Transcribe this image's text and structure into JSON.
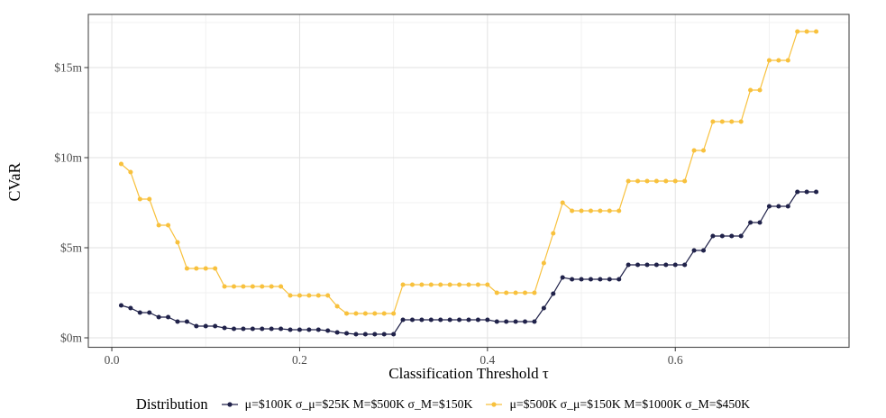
{
  "chart_data": {
    "type": "line",
    "title": "",
    "xlabel": "Classification Threshold τ",
    "ylabel": "CVaR",
    "legend_title": "Distribution",
    "legend_position": "bottom",
    "grid": true,
    "xlim": [
      -0.025,
      0.785
    ],
    "ylim": [
      -0.525,
      17.95
    ],
    "x_ticks": [
      0.0,
      0.2,
      0.4,
      0.6
    ],
    "x_tick_labels": [
      "0.0",
      "0.2",
      "0.4",
      "0.6"
    ],
    "x_minor_ticks": [
      0.1,
      0.3,
      0.5,
      0.7
    ],
    "y_ticks": [
      0,
      5,
      10,
      15
    ],
    "y_tick_labels": [
      "$0m",
      "$5m",
      "$10m",
      "$15m"
    ],
    "y_minor_ticks": [
      2.5,
      7.5,
      12.5,
      17.5
    ],
    "x": [
      0.01,
      0.02,
      0.03,
      0.04,
      0.05,
      0.06,
      0.07,
      0.08,
      0.09,
      0.1,
      0.11,
      0.12,
      0.13,
      0.14,
      0.15,
      0.16,
      0.17,
      0.18,
      0.19,
      0.2,
      0.21,
      0.22,
      0.23,
      0.24,
      0.25,
      0.26,
      0.27,
      0.28,
      0.29,
      0.3,
      0.31,
      0.32,
      0.33,
      0.34,
      0.35,
      0.36,
      0.37,
      0.38,
      0.39,
      0.4,
      0.41,
      0.42,
      0.43,
      0.44,
      0.45,
      0.46,
      0.47,
      0.48,
      0.49,
      0.5,
      0.51,
      0.52,
      0.53,
      0.54,
      0.55,
      0.56,
      0.57,
      0.58,
      0.59,
      0.6,
      0.61,
      0.62,
      0.63,
      0.64,
      0.65,
      0.66,
      0.67,
      0.68,
      0.69,
      0.7,
      0.71,
      0.72,
      0.73,
      0.74,
      0.75
    ],
    "series": [
      {
        "name": "μ=$100K σ_μ=$25K M=$500K σ_M=$150K",
        "color": "#20224a",
        "values": [
          1.8,
          1.65,
          1.4,
          1.4,
          1.15,
          1.15,
          0.9,
          0.9,
          0.65,
          0.65,
          0.65,
          0.55,
          0.5,
          0.5,
          0.5,
          0.5,
          0.5,
          0.5,
          0.45,
          0.45,
          0.45,
          0.45,
          0.4,
          0.3,
          0.25,
          0.2,
          0.2,
          0.2,
          0.2,
          0.2,
          1.0,
          1.0,
          1.0,
          1.0,
          1.0,
          1.0,
          1.0,
          1.0,
          1.0,
          1.0,
          0.9,
          0.9,
          0.9,
          0.9,
          0.9,
          1.65,
          2.45,
          3.35,
          3.25,
          3.25,
          3.25,
          3.25,
          3.25,
          3.25,
          4.05,
          4.05,
          4.05,
          4.05,
          4.05,
          4.05,
          4.05,
          4.85,
          4.85,
          5.65,
          5.65,
          5.65,
          5.65,
          6.4,
          6.4,
          7.3,
          7.3,
          7.3,
          8.1,
          8.1,
          8.1
        ]
      },
      {
        "name": "μ=$500K σ_μ=$150K M=$1000K σ_M=$450K",
        "color": "#f8c13d",
        "values": [
          9.65,
          9.2,
          7.7,
          7.7,
          6.25,
          6.25,
          5.3,
          3.85,
          3.85,
          3.85,
          3.85,
          2.85,
          2.85,
          2.85,
          2.85,
          2.85,
          2.85,
          2.85,
          2.35,
          2.35,
          2.35,
          2.35,
          2.35,
          1.75,
          1.35,
          1.35,
          1.35,
          1.35,
          1.35,
          1.35,
          2.95,
          2.95,
          2.95,
          2.95,
          2.95,
          2.95,
          2.95,
          2.95,
          2.95,
          2.95,
          2.5,
          2.5,
          2.5,
          2.5,
          2.5,
          4.15,
          5.8,
          7.5,
          7.05,
          7.05,
          7.05,
          7.05,
          7.05,
          7.05,
          8.7,
          8.7,
          8.7,
          8.7,
          8.7,
          8.7,
          8.7,
          10.4,
          10.4,
          12.0,
          12.0,
          12.0,
          12.0,
          13.75,
          13.75,
          15.4,
          15.4,
          15.4,
          17.0,
          17.0,
          17.0
        ]
      }
    ],
    "style": {
      "panel_border_color": "#4a4a4a",
      "grid_major_color": "#e2e2e2",
      "grid_minor_color": "#f0f0f0",
      "tick_mark_color": "#333333",
      "background_color": "#ffffff"
    }
  }
}
